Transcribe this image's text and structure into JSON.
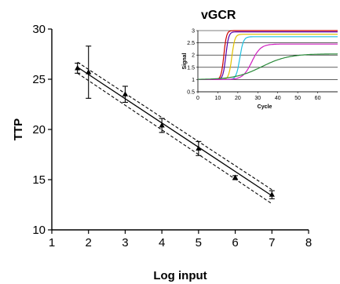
{
  "chart_data": [
    {
      "type": "scatter",
      "title": "",
      "xlabel": "Log input",
      "ylabel": "TTP",
      "xlim": [
        1,
        8
      ],
      "ylim": [
        10,
        30
      ],
      "xticks": [
        1,
        2,
        3,
        4,
        5,
        6,
        7,
        8
      ],
      "yticks": [
        10,
        15,
        20,
        25,
        30
      ],
      "points": [
        {
          "x": 1.7,
          "y": 26.1,
          "err": 0.5
        },
        {
          "x": 2.0,
          "y": 25.7,
          "err": 2.6
        },
        {
          "x": 3.0,
          "y": 23.5,
          "err": 0.8
        },
        {
          "x": 4.0,
          "y": 20.4,
          "err": 0.7
        },
        {
          "x": 5.0,
          "y": 18.1,
          "err": 0.7
        },
        {
          "x": 6.0,
          "y": 15.2,
          "err": 0.2
        },
        {
          "x": 7.0,
          "y": 13.5,
          "err": 0.4
        }
      ],
      "fit": {
        "x0": 1.7,
        "y0": 26.2,
        "x1": 7.0,
        "y1": 13.4
      },
      "ci_upper": {
        "x0": 1.7,
        "y0": 26.7,
        "x1": 7.0,
        "y1": 14.0
      },
      "ci_lower": {
        "x0": 1.7,
        "y0": 25.6,
        "x1": 7.0,
        "y1": 12.6
      },
      "grid": false
    },
    {
      "type": "line",
      "title": "vGCR",
      "xlabel": "Cycle",
      "ylabel": "Signal",
      "xlim": [
        0,
        70
      ],
      "ylim": [
        0.5,
        3
      ],
      "xticks": [
        0,
        10,
        20,
        30,
        40,
        50,
        60
      ],
      "yticks": [
        0.5,
        1,
        1.5,
        2,
        2.5,
        3
      ],
      "grid": true,
      "series": [
        {
          "color": "#cc0000",
          "midpoint": 13,
          "top": 3.0,
          "steep": 1.5
        },
        {
          "color": "#5500aa",
          "midpoint": 14,
          "top": 2.95,
          "steep": 1.4
        },
        {
          "color": "#e0c000",
          "midpoint": 17,
          "top": 2.85,
          "steep": 1.3
        },
        {
          "color": "#20c0e0",
          "midpoint": 21,
          "top": 2.75,
          "steep": 1.1
        },
        {
          "color": "#d020c0",
          "midpoint": 27,
          "top": 2.45,
          "steep": 0.45
        },
        {
          "color": "#2a8a3a",
          "midpoint": 32,
          "top": 2.05,
          "steep": 0.15
        }
      ]
    }
  ]
}
